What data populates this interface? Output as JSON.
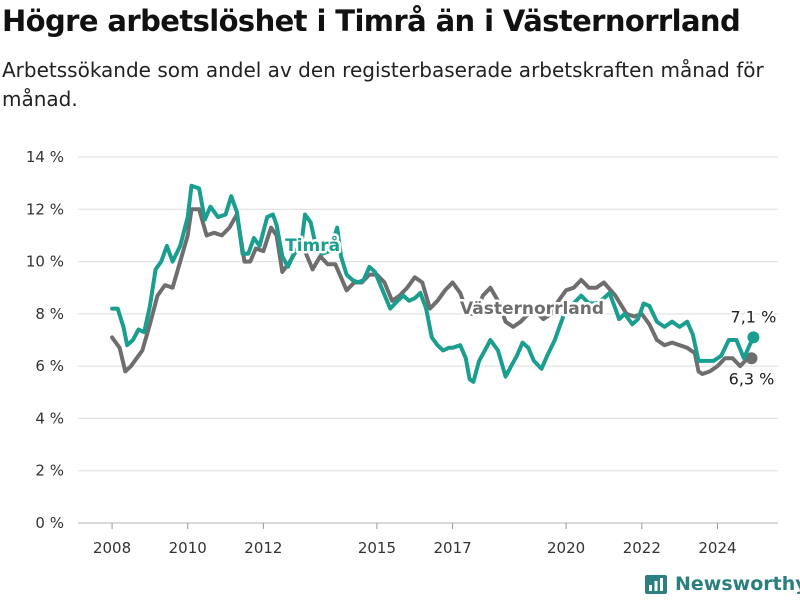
{
  "title": "Högre arbetslöshet i Timrå än i Västernorrland",
  "subtitle": "Arbetssökande som andel av den registerbaserade arbetskraften månad för månad.",
  "brand": "Newsworthy",
  "colors": {
    "timra": "#1a9e8f",
    "vasternorrland": "#6e6e6e",
    "grid": "#dcdcdc",
    "brand": "#2c7f80"
  },
  "chart_data": {
    "type": "line",
    "title": "Högre arbetslöshet i Timrå än i Västernorrland",
    "subtitle": "Arbetssökande som andel av den registerbaserade arbetskraften månad för månad.",
    "x_ticks": [
      {
        "label": "2008",
        "value": 2008.0
      },
      {
        "label": "2010",
        "value": 2010.0
      },
      {
        "label": "2012",
        "value": 2012.0
      },
      {
        "label": "2015",
        "value": 2015.0
      },
      {
        "label": "2017",
        "value": 2017.0
      },
      {
        "label": "2020",
        "value": 2020.0
      },
      {
        "label": "2022",
        "value": 2022.0
      },
      {
        "label": "2024",
        "value": 2024.0
      }
    ],
    "y_ticks": [
      {
        "label": "0 %",
        "value": 0
      },
      {
        "label": "2 %",
        "value": 2
      },
      {
        "label": "4 %",
        "value": 4
      },
      {
        "label": "6 %",
        "value": 6
      },
      {
        "label": "8 %",
        "value": 8
      },
      {
        "label": "10 %",
        "value": 10
      },
      {
        "label": "12 %",
        "value": 12
      },
      {
        "label": "14 %",
        "value": 14
      }
    ],
    "xlim": [
      2007.1,
      2025.6
    ],
    "ylim": [
      0,
      14
    ],
    "grid": "horizontal",
    "series": [
      {
        "name": "Västernorrland",
        "color": "#6e6e6e",
        "end_label": "6,3 %",
        "points": [
          [
            2008.0,
            7.1
          ],
          [
            2008.2,
            6.7
          ],
          [
            2008.35,
            5.8
          ],
          [
            2008.5,
            6.0
          ],
          [
            2008.65,
            6.3
          ],
          [
            2008.8,
            6.6
          ],
          [
            2009.0,
            7.6
          ],
          [
            2009.2,
            8.7
          ],
          [
            2009.4,
            9.1
          ],
          [
            2009.6,
            9.0
          ],
          [
            2009.8,
            10.0
          ],
          [
            2010.0,
            11.0
          ],
          [
            2010.1,
            12.0
          ],
          [
            2010.3,
            12.0
          ],
          [
            2010.5,
            11.0
          ],
          [
            2010.7,
            11.1
          ],
          [
            2010.9,
            11.0
          ],
          [
            2011.1,
            11.3
          ],
          [
            2011.3,
            11.8
          ],
          [
            2011.5,
            10.0
          ],
          [
            2011.65,
            10.0
          ],
          [
            2011.8,
            10.5
          ],
          [
            2012.0,
            10.4
          ],
          [
            2012.2,
            11.3
          ],
          [
            2012.35,
            11.0
          ],
          [
            2012.5,
            9.6
          ],
          [
            2012.7,
            10.0
          ],
          [
            2012.9,
            10.5
          ],
          [
            2013.1,
            10.4
          ],
          [
            2013.3,
            9.7
          ],
          [
            2013.5,
            10.2
          ],
          [
            2013.7,
            9.9
          ],
          [
            2013.9,
            9.9
          ],
          [
            2014.2,
            8.9
          ],
          [
            2014.4,
            9.2
          ],
          [
            2014.6,
            9.2
          ],
          [
            2014.8,
            9.5
          ],
          [
            2015.0,
            9.5
          ],
          [
            2015.2,
            9.2
          ],
          [
            2015.4,
            8.5
          ],
          [
            2015.6,
            8.7
          ],
          [
            2015.8,
            9.0
          ],
          [
            2016.0,
            9.4
          ],
          [
            2016.2,
            9.2
          ],
          [
            2016.4,
            8.2
          ],
          [
            2016.6,
            8.5
          ],
          [
            2016.8,
            8.9
          ],
          [
            2017.0,
            9.2
          ],
          [
            2017.2,
            8.8
          ],
          [
            2017.4,
            8.0
          ],
          [
            2017.6,
            8.0
          ],
          [
            2017.8,
            8.7
          ],
          [
            2018.0,
            9.0
          ],
          [
            2018.2,
            8.5
          ],
          [
            2018.4,
            7.7
          ],
          [
            2018.6,
            7.5
          ],
          [
            2018.8,
            7.7
          ],
          [
            2019.0,
            8.0
          ],
          [
            2019.2,
            8.1
          ],
          [
            2019.4,
            7.8
          ],
          [
            2019.6,
            8.0
          ],
          [
            2019.8,
            8.5
          ],
          [
            2020.0,
            8.9
          ],
          [
            2020.2,
            9.0
          ],
          [
            2020.4,
            9.3
          ],
          [
            2020.6,
            9.0
          ],
          [
            2020.8,
            9.0
          ],
          [
            2021.0,
            9.2
          ],
          [
            2021.3,
            8.7
          ],
          [
            2021.6,
            8.0
          ],
          [
            2021.8,
            7.9
          ],
          [
            2022.0,
            8.0
          ],
          [
            2022.2,
            7.6
          ],
          [
            2022.4,
            7.0
          ],
          [
            2022.6,
            6.8
          ],
          [
            2022.8,
            6.9
          ],
          [
            2023.0,
            6.8
          ],
          [
            2023.2,
            6.7
          ],
          [
            2023.4,
            6.5
          ],
          [
            2023.5,
            5.8
          ],
          [
            2023.6,
            5.7
          ],
          [
            2023.8,
            5.8
          ],
          [
            2024.0,
            6.0
          ],
          [
            2024.2,
            6.3
          ],
          [
            2024.4,
            6.3
          ],
          [
            2024.6,
            6.0
          ],
          [
            2024.8,
            6.3
          ],
          [
            2024.9,
            6.3
          ]
        ]
      },
      {
        "name": "Timrå",
        "color": "#1a9e8f",
        "end_label": "7,1 %",
        "points": [
          [
            2008.0,
            8.2
          ],
          [
            2008.15,
            8.2
          ],
          [
            2008.3,
            7.5
          ],
          [
            2008.4,
            6.8
          ],
          [
            2008.55,
            7.0
          ],
          [
            2008.7,
            7.4
          ],
          [
            2008.85,
            7.3
          ],
          [
            2009.0,
            8.3
          ],
          [
            2009.15,
            9.7
          ],
          [
            2009.3,
            10.0
          ],
          [
            2009.45,
            10.6
          ],
          [
            2009.6,
            10.0
          ],
          [
            2009.8,
            10.6
          ],
          [
            2010.0,
            11.7
          ],
          [
            2010.1,
            12.9
          ],
          [
            2010.3,
            12.8
          ],
          [
            2010.45,
            11.6
          ],
          [
            2010.6,
            12.1
          ],
          [
            2010.8,
            11.7
          ],
          [
            2011.0,
            11.8
          ],
          [
            2011.15,
            12.5
          ],
          [
            2011.3,
            11.9
          ],
          [
            2011.45,
            10.3
          ],
          [
            2011.6,
            10.3
          ],
          [
            2011.75,
            10.9
          ],
          [
            2011.9,
            10.6
          ],
          [
            2012.1,
            11.7
          ],
          [
            2012.25,
            11.8
          ],
          [
            2012.35,
            11.4
          ],
          [
            2012.5,
            10.2
          ],
          [
            2012.65,
            9.8
          ],
          [
            2012.8,
            10.3
          ],
          [
            2013.0,
            10.6
          ],
          [
            2013.1,
            11.8
          ],
          [
            2013.25,
            11.5
          ],
          [
            2013.4,
            10.5
          ],
          [
            2013.55,
            10.3
          ],
          [
            2013.75,
            10.4
          ],
          [
            2013.95,
            11.3
          ],
          [
            2014.05,
            10.2
          ],
          [
            2014.2,
            9.5
          ],
          [
            2014.35,
            9.3
          ],
          [
            2014.5,
            9.2
          ],
          [
            2014.65,
            9.3
          ],
          [
            2014.8,
            9.8
          ],
          [
            2014.95,
            9.6
          ],
          [
            2015.15,
            8.9
          ],
          [
            2015.35,
            8.2
          ],
          [
            2015.55,
            8.5
          ],
          [
            2015.7,
            8.7
          ],
          [
            2015.85,
            8.5
          ],
          [
            2016.0,
            8.6
          ],
          [
            2016.15,
            8.8
          ],
          [
            2016.3,
            8.2
          ],
          [
            2016.45,
            7.1
          ],
          [
            2016.6,
            6.8
          ],
          [
            2016.75,
            6.6
          ],
          [
            2016.9,
            6.7
          ],
          [
            2017.0,
            6.7
          ],
          [
            2017.2,
            6.8
          ],
          [
            2017.35,
            6.3
          ],
          [
            2017.45,
            5.5
          ],
          [
            2017.55,
            5.4
          ],
          [
            2017.7,
            6.2
          ],
          [
            2017.85,
            6.6
          ],
          [
            2018.0,
            7.0
          ],
          [
            2018.2,
            6.6
          ],
          [
            2018.4,
            5.6
          ],
          [
            2018.55,
            6.0
          ],
          [
            2018.7,
            6.4
          ],
          [
            2018.85,
            6.9
          ],
          [
            2019.0,
            6.7
          ],
          [
            2019.15,
            6.2
          ],
          [
            2019.35,
            5.9
          ],
          [
            2019.5,
            6.4
          ],
          [
            2019.7,
            7.0
          ],
          [
            2019.85,
            7.6
          ],
          [
            2020.0,
            8.2
          ],
          [
            2020.2,
            8.4
          ],
          [
            2020.4,
            8.7
          ],
          [
            2020.6,
            8.4
          ],
          [
            2020.8,
            8.4
          ],
          [
            2021.0,
            8.6
          ],
          [
            2021.15,
            8.8
          ],
          [
            2021.3,
            8.2
          ],
          [
            2021.4,
            7.8
          ],
          [
            2021.55,
            8.0
          ],
          [
            2021.75,
            7.6
          ],
          [
            2021.9,
            7.8
          ],
          [
            2022.05,
            8.4
          ],
          [
            2022.2,
            8.3
          ],
          [
            2022.4,
            7.7
          ],
          [
            2022.6,
            7.5
          ],
          [
            2022.8,
            7.7
          ],
          [
            2023.0,
            7.5
          ],
          [
            2023.2,
            7.7
          ],
          [
            2023.35,
            7.2
          ],
          [
            2023.5,
            6.2
          ],
          [
            2023.7,
            6.2
          ],
          [
            2023.9,
            6.2
          ],
          [
            2024.1,
            6.4
          ],
          [
            2024.3,
            7.0
          ],
          [
            2024.5,
            7.0
          ],
          [
            2024.7,
            6.3
          ],
          [
            2024.85,
            6.8
          ],
          [
            2024.95,
            7.1
          ]
        ]
      }
    ],
    "annotations": [
      {
        "text": "Timrå",
        "series": "Timrå",
        "x": 2013.3,
        "y": 10.4
      },
      {
        "text": "Västernorrland",
        "series": "Västernorrland",
        "x": 2019.1,
        "y": 8.0
      }
    ]
  }
}
